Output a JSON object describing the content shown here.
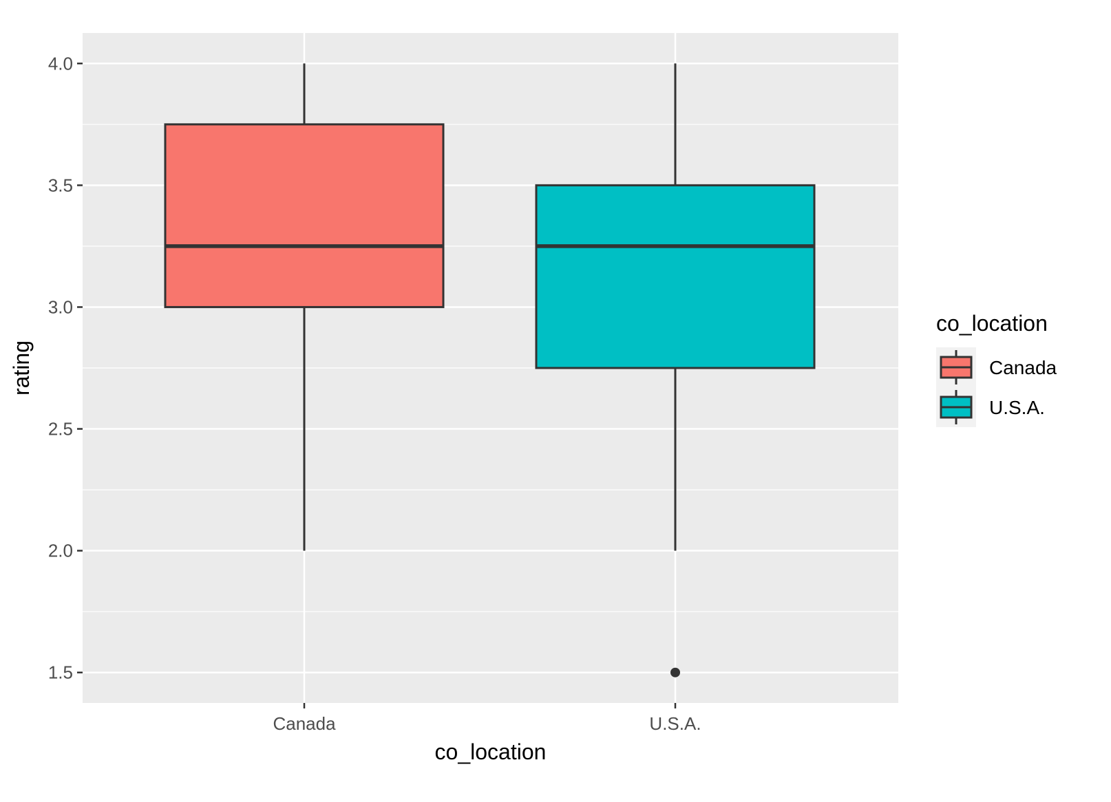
{
  "chart_data": {
    "type": "boxplot",
    "xlabel": "co_location",
    "ylabel": "rating",
    "categories": [
      "Canada",
      "U.S.A."
    ],
    "ylim": [
      1.375,
      4.125
    ],
    "yticks": [
      "1.5",
      "2.0",
      "2.5",
      "3.0",
      "3.5",
      "4.0"
    ],
    "grid": true,
    "legend": {
      "title": "co_location",
      "placement": "right",
      "entries": [
        "Canada",
        "U.S.A."
      ]
    },
    "series": [
      {
        "name": "Canada",
        "color": "#F8766D",
        "min": 2.0,
        "q1": 3.0,
        "median": 3.25,
        "q3": 3.75,
        "max": 4.0,
        "outliers": []
      },
      {
        "name": "U.S.A.",
        "color": "#00BFC4",
        "min": 2.0,
        "q1": 2.75,
        "median": 3.25,
        "q3": 3.5,
        "max": 4.0,
        "outliers": [
          1.5
        ]
      }
    ]
  }
}
